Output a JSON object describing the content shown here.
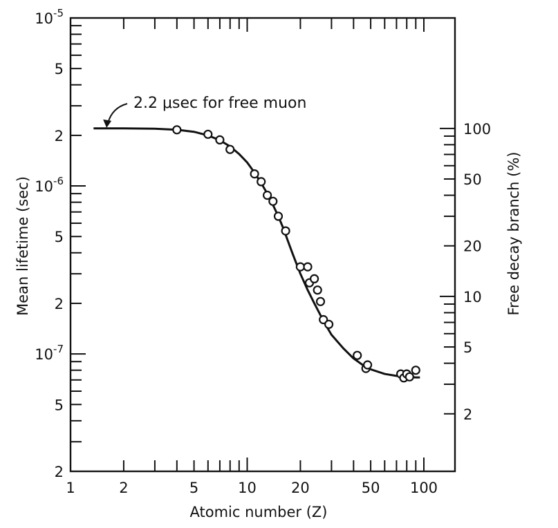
{
  "chart_data": {
    "type": "scatter",
    "x_axis": {
      "label": "Atomic number (Z)",
      "scale": "log",
      "range": [
        1,
        150
      ],
      "tick_labels": [
        "1",
        "2",
        "5",
        "10",
        "20",
        "50",
        "100"
      ]
    },
    "y_axis_left": {
      "label": "Mean lifetime (sec)",
      "scale": "log",
      "range": [
        2e-08,
        1e-05
      ],
      "tick_labels": [
        {
          "value": 1e-05,
          "mantissa": "10",
          "exponent": "-5"
        },
        {
          "value": 5e-06,
          "mantissa": "5",
          "exponent": ""
        },
        {
          "value": 2e-06,
          "mantissa": "2",
          "exponent": ""
        },
        {
          "value": 1e-06,
          "mantissa": "10",
          "exponent": "-6"
        },
        {
          "value": 5e-07,
          "mantissa": "5",
          "exponent": ""
        },
        {
          "value": 2e-07,
          "mantissa": "2",
          "exponent": ""
        },
        {
          "value": 1e-07,
          "mantissa": "10",
          "exponent": "-7"
        },
        {
          "value": 5e-08,
          "mantissa": "5",
          "exponent": ""
        },
        {
          "value": 2e-08,
          "mantissa": "2",
          "exponent": ""
        }
      ]
    },
    "y_axis_right": {
      "label": "Free decay branch (%)",
      "scale": "log",
      "tick_labels": [
        {
          "value": 100,
          "label": "100"
        },
        {
          "value": 50,
          "label": "50"
        },
        {
          "value": 20,
          "label": "20"
        },
        {
          "value": 10,
          "label": "10"
        },
        {
          "value": 5,
          "label": "5"
        },
        {
          "value": 2,
          "label": "2"
        }
      ]
    },
    "annotation": {
      "text": "2.2 μsec for free muon",
      "points_to_z": 1.6,
      "points_to_lifetime": 2.2e-06
    },
    "free_muon_lifetime": 2.2e-06,
    "curve": {
      "x": [
        1.35,
        2,
        3,
        4,
        5,
        6,
        7,
        8,
        9,
        10,
        11,
        12,
        13,
        14,
        15,
        16,
        17,
        18,
        19,
        20,
        22,
        24,
        26,
        28,
        30,
        35,
        40,
        45,
        50,
        60,
        70,
        80,
        90,
        95
      ],
      "y": [
        2.2e-06,
        2.2e-06,
        2.19e-06,
        2.16e-06,
        2.1e-06,
        2e-06,
        1.87e-06,
        1.72e-06,
        1.55e-06,
        1.38e-06,
        1.2e-06,
        1.04e-06,
        9e-07,
        7.7e-07,
        6.6e-07,
        5.6e-07,
        4.7e-07,
        4e-07,
        3.45e-07,
        3e-07,
        2.4e-07,
        2e-07,
        1.7e-07,
        1.47e-07,
        1.3e-07,
        1.08e-07,
        9.4e-08,
        8.6e-08,
        8.1e-08,
        7.6e-08,
        7.4e-08,
        7.3e-08,
        7.25e-08,
        7.25e-08
      ]
    },
    "points": [
      {
        "z": 4,
        "lifetime": 2.16e-06
      },
      {
        "z": 6,
        "lifetime": 2.03e-06
      },
      {
        "z": 7,
        "lifetime": 1.88e-06
      },
      {
        "z": 8,
        "lifetime": 1.65e-06
      },
      {
        "z": 11,
        "lifetime": 1.18e-06
      },
      {
        "z": 12,
        "lifetime": 1.06e-06
      },
      {
        "z": 13,
        "lifetime": 8.8e-07
      },
      {
        "z": 14,
        "lifetime": 8.1e-07
      },
      {
        "z": 15,
        "lifetime": 6.6e-07
      },
      {
        "z": 16.5,
        "lifetime": 5.4e-07
      },
      {
        "z": 20,
        "lifetime": 3.3e-07
      },
      {
        "z": 22,
        "lifetime": 3.3e-07
      },
      {
        "z": 22.5,
        "lifetime": 2.65e-07
      },
      {
        "z": 24,
        "lifetime": 2.8e-07
      },
      {
        "z": 25,
        "lifetime": 2.4e-07
      },
      {
        "z": 26,
        "lifetime": 2.05e-07
      },
      {
        "z": 27,
        "lifetime": 1.6e-07
      },
      {
        "z": 29,
        "lifetime": 1.5e-07
      },
      {
        "z": 42,
        "lifetime": 9.8e-08
      },
      {
        "z": 47,
        "lifetime": 8.2e-08
      },
      {
        "z": 48,
        "lifetime": 8.6e-08
      },
      {
        "z": 74,
        "lifetime": 7.6e-08
      },
      {
        "z": 77,
        "lifetime": 7.2e-08
      },
      {
        "z": 80,
        "lifetime": 7.6e-08
      },
      {
        "z": 83,
        "lifetime": 7.3e-08
      },
      {
        "z": 90,
        "lifetime": 8e-08
      }
    ],
    "grid": false,
    "legend": "none"
  }
}
